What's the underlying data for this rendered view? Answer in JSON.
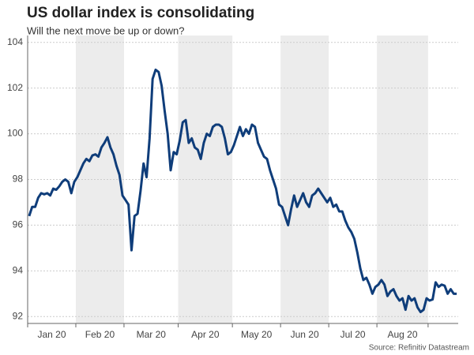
{
  "chart_data": {
    "type": "line",
    "title": "US dollar index is consolidating",
    "subtitle": "Will the next move be up or down?",
    "source": "Source: Refinitiv Datastream",
    "x": [
      "Jan 20",
      "Jan 20",
      "Jan 20",
      "Jan 20",
      "Jan 20",
      "Jan 20",
      "Jan 20",
      "Jan 20",
      "Jan 20",
      "Jan 20",
      "Jan 20",
      "Jan 20",
      "Jan 20",
      "Jan 20",
      "Jan 20",
      "Jan 20",
      "Feb 20",
      "Feb 20",
      "Feb 20",
      "Feb 20",
      "Feb 20",
      "Feb 20",
      "Feb 20",
      "Feb 20",
      "Feb 20",
      "Feb 20",
      "Feb 20",
      "Feb 20",
      "Feb 20",
      "Feb 20",
      "Feb 20",
      "Feb 20",
      "Mar 20",
      "Mar 20",
      "Mar 20",
      "Mar 20",
      "Mar 20",
      "Mar 20",
      "Mar 20",
      "Mar 20",
      "Mar 20",
      "Mar 20",
      "Mar 20",
      "Mar 20",
      "Mar 20",
      "Mar 20",
      "Mar 20",
      "Mar 20",
      "Mar 20",
      "Mar 20",
      "Apr 20",
      "Apr 20",
      "Apr 20",
      "Apr 20",
      "Apr 20",
      "Apr 20",
      "Apr 20",
      "Apr 20",
      "Apr 20",
      "Apr 20",
      "Apr 20",
      "Apr 20",
      "Apr 20",
      "Apr 20",
      "Apr 20",
      "Apr 20",
      "Apr 20",
      "Apr 20",
      "May 20",
      "May 20",
      "May 20",
      "May 20",
      "May 20",
      "May 20",
      "May 20",
      "May 20",
      "May 20",
      "May 20",
      "May 20",
      "May 20",
      "May 20",
      "May 20",
      "May 20",
      "May 20",
      "Jun 20",
      "Jun 20",
      "Jun 20",
      "Jun 20",
      "Jun 20",
      "Jun 20",
      "Jun 20",
      "Jun 20",
      "Jun 20",
      "Jun 20",
      "Jun 20",
      "Jun 20",
      "Jun 20",
      "Jun 20",
      "Jun 20",
      "Jun 20",
      "Jul 20",
      "Jul 20",
      "Jul 20",
      "Jul 20",
      "Jul 20",
      "Jul 20",
      "Jul 20",
      "Jul 20",
      "Jul 20",
      "Jul 20",
      "Jul 20",
      "Jul 20",
      "Jul 20",
      "Jul 20",
      "Jul 20",
      "Jul 20",
      "Aug 20",
      "Aug 20",
      "Aug 20",
      "Aug 20",
      "Aug 20",
      "Aug 20",
      "Aug 20",
      "Aug 20",
      "Aug 20",
      "Aug 20",
      "Aug 20",
      "Aug 20",
      "Aug 20",
      "Aug 20",
      "Aug 20",
      "Aug 20",
      "Aug 20",
      null,
      null,
      null,
      null,
      null,
      null,
      null,
      null,
      null,
      null
    ],
    "series": [
      {
        "name": "US dollar index",
        "color": "#0f3d7a",
        "values": [
          96.4,
          96.8,
          96.8,
          97.2,
          97.4,
          97.35,
          97.4,
          97.3,
          97.6,
          97.55,
          97.7,
          97.9,
          98.0,
          97.9,
          97.4,
          97.9,
          98.1,
          98.4,
          98.7,
          98.9,
          98.8,
          99.05,
          99.1,
          99.0,
          99.4,
          99.6,
          99.85,
          99.4,
          99.1,
          98.6,
          98.2,
          97.3,
          97.1,
          96.9,
          94.9,
          96.4,
          96.5,
          97.5,
          98.7,
          98.1,
          99.8,
          102.4,
          102.8,
          102.7,
          102.1,
          101.0,
          100.0,
          98.4,
          99.2,
          99.1,
          99.7,
          100.5,
          100.6,
          99.6,
          99.8,
          99.4,
          99.3,
          98.9,
          99.6,
          100.0,
          99.9,
          100.3,
          100.4,
          100.4,
          100.3,
          99.8,
          99.1,
          99.2,
          99.5,
          99.9,
          100.3,
          99.9,
          100.2,
          100.0,
          100.4,
          100.3,
          99.6,
          99.3,
          99.0,
          98.9,
          98.4,
          98.0,
          97.6,
          96.9,
          96.8,
          96.4,
          96.0,
          96.7,
          97.3,
          96.8,
          97.1,
          97.4,
          97.0,
          96.8,
          97.3,
          97.4,
          97.6,
          97.4,
          97.2,
          97.0,
          97.2,
          96.8,
          96.9,
          96.6,
          96.6,
          96.2,
          95.9,
          95.7,
          95.4,
          94.8,
          94.1,
          93.6,
          93.7,
          93.4,
          93.0,
          93.3,
          93.4,
          93.6,
          93.4,
          92.9,
          93.1,
          93.2,
          92.9,
          92.7,
          92.8,
          92.3,
          92.9,
          92.7,
          92.8,
          92.4,
          92.2,
          92.3,
          92.8,
          92.7,
          92.75,
          93.5,
          93.3,
          93.4,
          93.35,
          93.0,
          93.2,
          93.0,
          93.0
        ]
      }
    ],
    "ylim": [
      91.7,
      104.3
    ],
    "yticks": [
      92,
      94,
      96,
      98,
      100,
      102,
      104
    ],
    "grid": true
  }
}
